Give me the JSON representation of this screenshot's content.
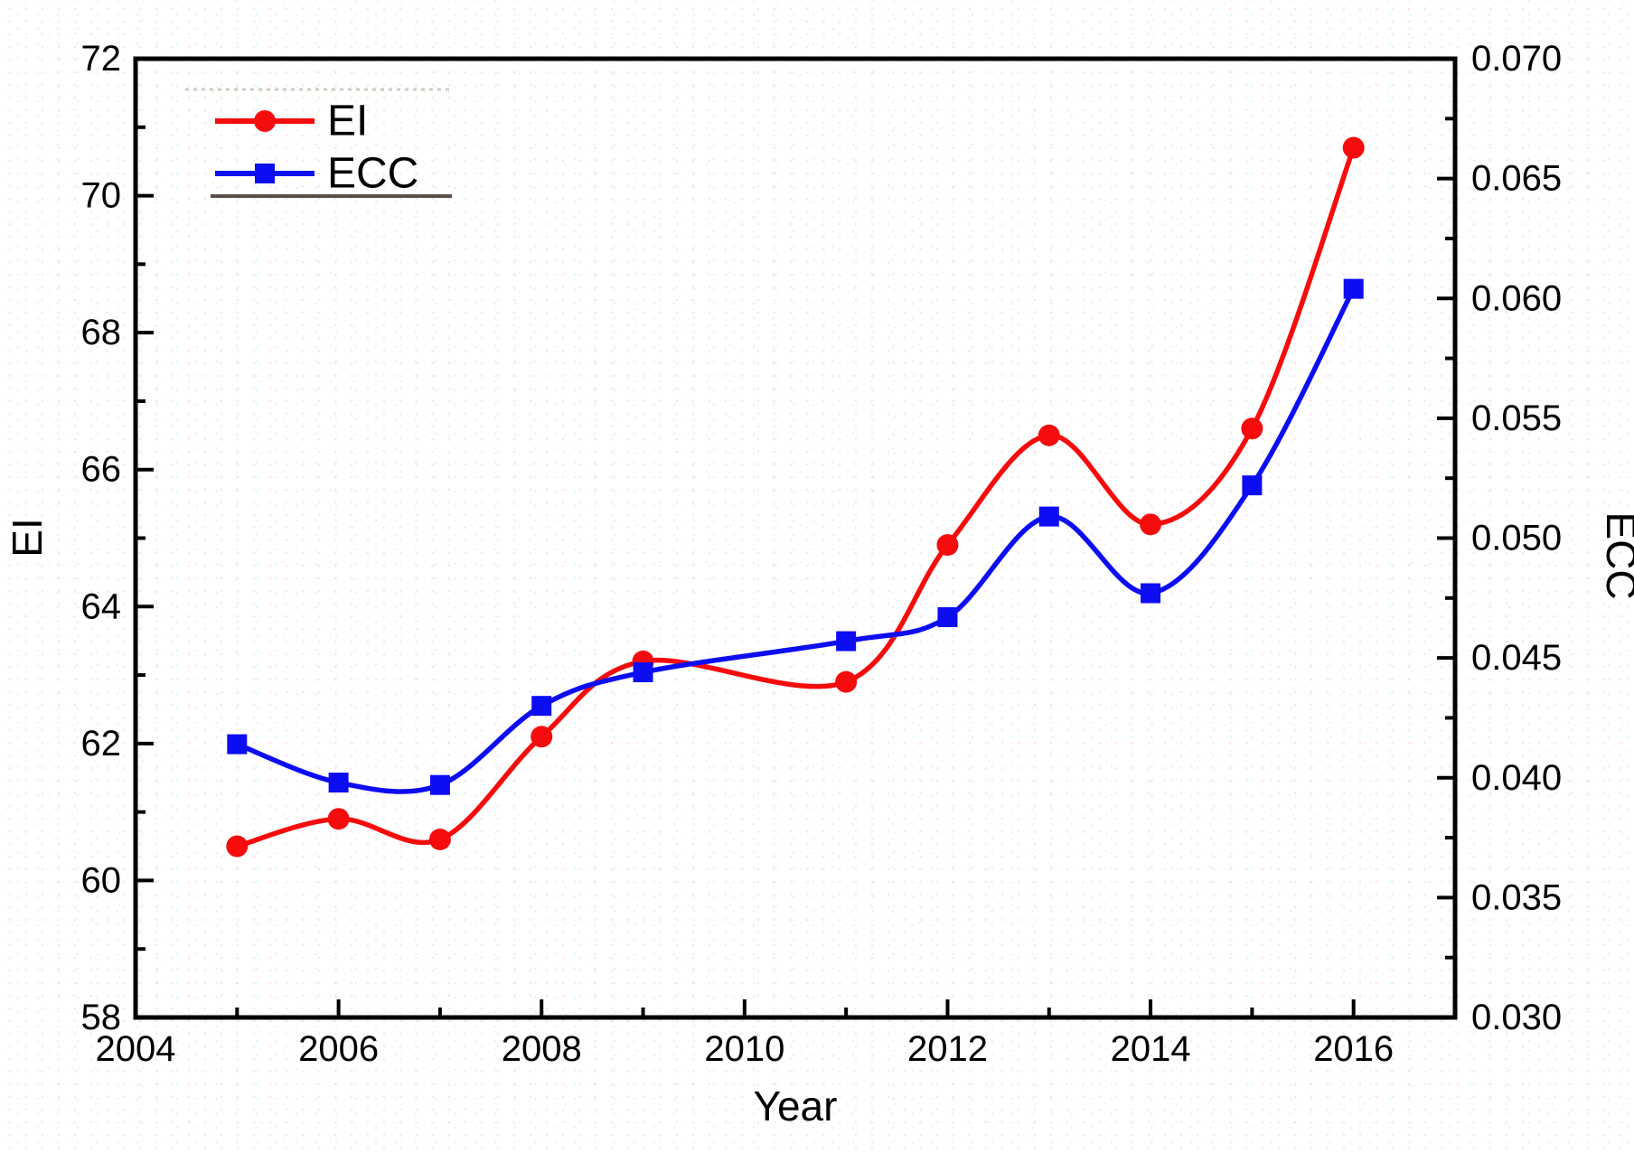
{
  "chart_data": {
    "type": "line",
    "title": "",
    "xlabel": "Year",
    "ylabel_left": "EI",
    "ylabel_right": "ECC",
    "x_range": [
      2004,
      2017
    ],
    "x_major_ticks": [
      2004,
      2006,
      2008,
      2010,
      2012,
      2014,
      2016
    ],
    "x_tick_labels": [
      "2004",
      "2006",
      "2008",
      "2010",
      "2012",
      "2014",
      "2016"
    ],
    "x_minor_ticks": [
      2005,
      2007,
      2009,
      2011,
      2013,
      2015
    ],
    "left_axis": {
      "range": [
        58,
        72
      ],
      "ticks": [
        58,
        60,
        62,
        64,
        66,
        68,
        70,
        72
      ],
      "tick_labels": [
        "58",
        "60",
        "62",
        "64",
        "66",
        "68",
        "70",
        "72"
      ],
      "minor_ticks": [
        59,
        61,
        63,
        65,
        67,
        69,
        71
      ]
    },
    "right_axis": {
      "range": [
        0.03,
        0.07
      ],
      "ticks": [
        0.03,
        0.035,
        0.04,
        0.045,
        0.05,
        0.055,
        0.06,
        0.065,
        0.07
      ],
      "tick_labels": [
        "0.030",
        "0.035",
        "0.040",
        "0.045",
        "0.050",
        "0.055",
        "0.060",
        "0.065",
        "0.070"
      ],
      "minor_ticks": [
        0.0325,
        0.0375,
        0.0425,
        0.0475,
        0.0525,
        0.0575,
        0.0625,
        0.0675
      ]
    },
    "grid": false,
    "legend_position": "top-left",
    "series": [
      {
        "name": "EI",
        "axis": "left",
        "color": "#f50c0c",
        "marker": "circle",
        "x": [
          2005,
          2006,
          2007,
          2008,
          2009,
          2011,
          2012,
          2013,
          2014,
          2015,
          2016
        ],
        "y": [
          60.5,
          60.9,
          60.6,
          62.1,
          63.2,
          62.9,
          64.9,
          66.5,
          65.2,
          66.6,
          70.7
        ]
      },
      {
        "name": "ECC",
        "axis": "right",
        "color": "#0d0df2",
        "marker": "square",
        "x": [
          2005,
          2006,
          2007,
          2008,
          2009,
          2011,
          2012,
          2013,
          2014,
          2015,
          2016
        ],
        "y": [
          0.0414,
          0.0398,
          0.0397,
          0.043,
          0.0444,
          0.0457,
          0.0467,
          0.0509,
          0.0477,
          0.0522,
          0.0604
        ]
      }
    ]
  }
}
